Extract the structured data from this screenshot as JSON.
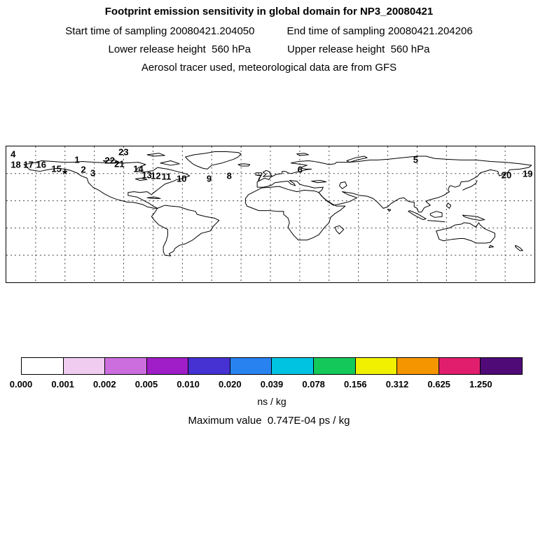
{
  "header": {
    "title": "Footprint emission sensitivity in global domain for NP3_20080421",
    "line2_left": "Start time of sampling 20080421.204050",
    "line2_right": "End time of sampling 20080421.204206",
    "line3_left": "Lower release height  560 hPa",
    "line3_right": "Upper release height  560 hPa",
    "line4": "Aerosol tracer used, meteorological data are from GFS"
  },
  "footer": {
    "units": "ns / kg",
    "max_label": "Maximum value  0.747E-04 ps / kg"
  },
  "chart_data": {
    "type": "heatmap",
    "title": "Footprint emission sensitivity in global domain for NP3_20080421",
    "domain": "global",
    "projection": "cylindrical lat-lon, dashed graticule",
    "colorbar": {
      "units": "ns / kg",
      "boundaries": [
        0.0,
        0.001,
        0.002,
        0.005,
        0.01,
        0.02,
        0.039,
        0.078,
        0.156,
        0.312,
        0.625,
        1.25
      ],
      "tick_labels": [
        "0.000",
        "0.001",
        "0.002",
        "0.005",
        "0.010",
        "0.020",
        "0.039",
        "0.078",
        "0.156",
        "0.312",
        "0.625",
        "1.250"
      ],
      "colors": [
        "#FFFFFF",
        "#F0CCF0",
        "#CC6EDE",
        "#A01EC8",
        "#4632D2",
        "#2882F0",
        "#00C3E1",
        "#14C85A",
        "#F0F000",
        "#F59600",
        "#E11E6E",
        "#500A78"
      ]
    },
    "maximum_value_text": "Maximum value  0.747E-04 ps / kg",
    "trajectory_labels": [
      {
        "label": "4",
        "x_pct": 1.3,
        "y_pct": 5.6
      },
      {
        "label": "18",
        "x_pct": 1.8,
        "y_pct": 13.3
      },
      {
        "label": "17",
        "x_pct": 4.2,
        "y_pct": 13.3
      },
      {
        "label": "16",
        "x_pct": 6.6,
        "y_pct": 13.3
      },
      {
        "label": "15",
        "x_pct": 9.5,
        "y_pct": 16.6
      },
      {
        "label": "*",
        "x_pct": 11.1,
        "y_pct": 20.5
      },
      {
        "label": "1",
        "x_pct": 13.4,
        "y_pct": 10.0
      },
      {
        "label": "2",
        "x_pct": 14.6,
        "y_pct": 17.0
      },
      {
        "label": "3",
        "x_pct": 16.4,
        "y_pct": 19.5
      },
      {
        "label": "23",
        "x_pct": 22.2,
        "y_pct": 4.0
      },
      {
        "label": "22",
        "x_pct": 19.6,
        "y_pct": 10.5
      },
      {
        "label": "21",
        "x_pct": 21.4,
        "y_pct": 13.0
      },
      {
        "label": "14",
        "x_pct": 25.0,
        "y_pct": 16.5
      },
      {
        "label": "13",
        "x_pct": 26.6,
        "y_pct": 21.0
      },
      {
        "label": "12",
        "x_pct": 28.3,
        "y_pct": 21.9
      },
      {
        "label": "11",
        "x_pct": 30.3,
        "y_pct": 22.4
      },
      {
        "label": "10",
        "x_pct": 33.2,
        "y_pct": 23.5
      },
      {
        "label": "9",
        "x_pct": 38.4,
        "y_pct": 23.5
      },
      {
        "label": "8",
        "x_pct": 42.2,
        "y_pct": 21.9
      },
      {
        "label": "7",
        "x_pct": 47.9,
        "y_pct": 23.0
      },
      {
        "label": "6",
        "x_pct": 55.6,
        "y_pct": 16.8
      },
      {
        "label": "5",
        "x_pct": 77.5,
        "y_pct": 9.7
      },
      {
        "label": "20",
        "x_pct": 94.7,
        "y_pct": 20.9
      },
      {
        "label": "19",
        "x_pct": 98.7,
        "y_pct": 19.9
      }
    ],
    "grid": {
      "lon_columns": 18,
      "lat_rows": 5
    }
  }
}
